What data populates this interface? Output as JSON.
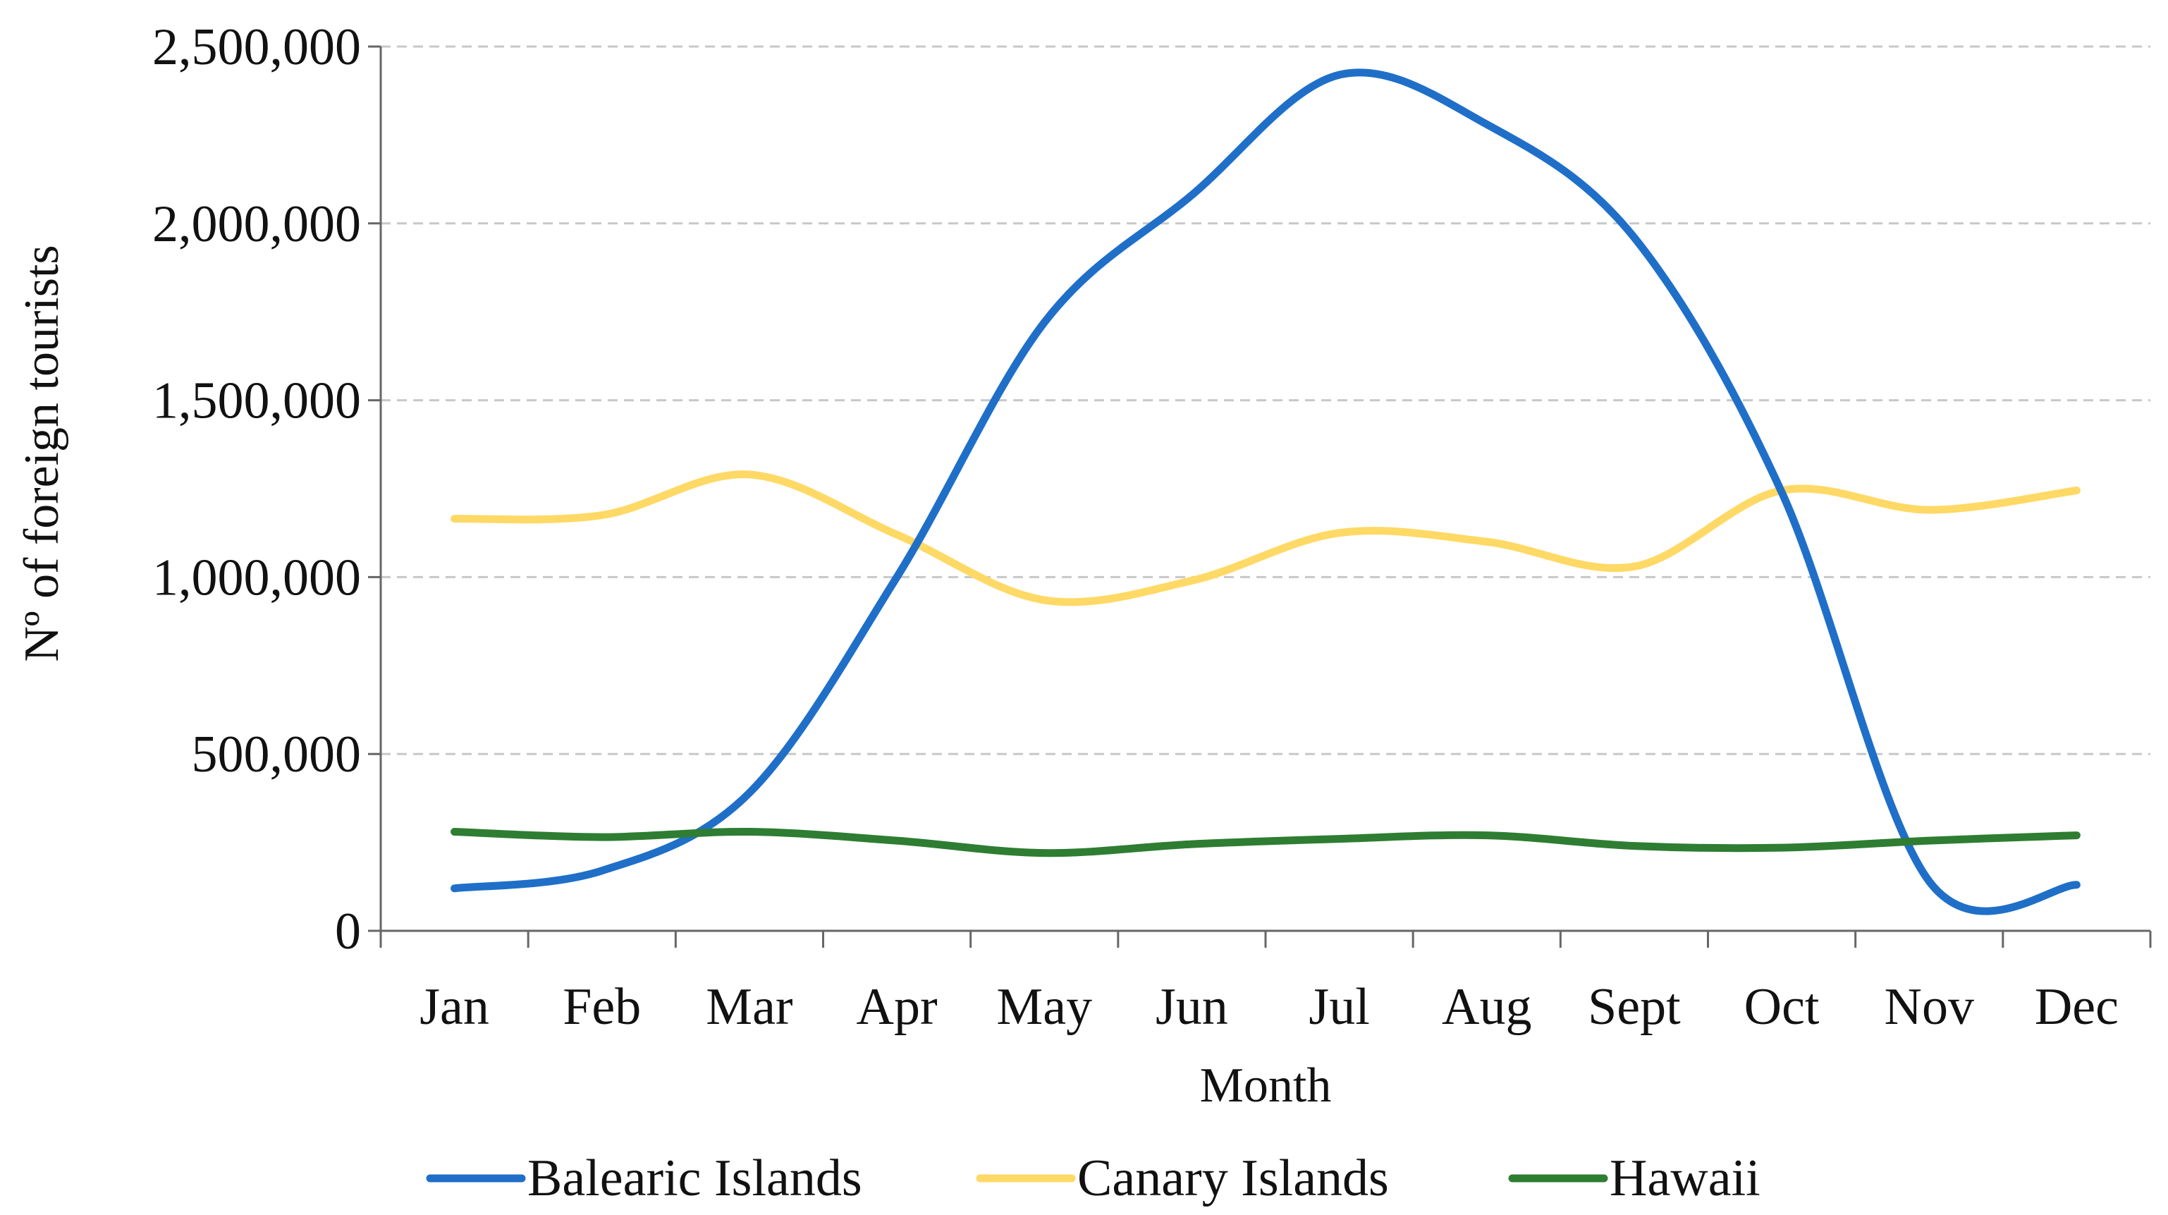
{
  "chart_data": {
    "type": "line",
    "title": "",
    "xlabel": "Month",
    "ylabel": "Nº of foreign tourists",
    "categories": [
      "Jan",
      "Feb",
      "Mar",
      "Apr",
      "May",
      "Jun",
      "Jul",
      "Aug",
      "Sept",
      "Oct",
      "Nov",
      "Dec"
    ],
    "ylim": [
      0,
      2500000
    ],
    "yticks": [
      0,
      500000,
      1000000,
      1500000,
      2000000,
      2500000
    ],
    "ytick_labels": [
      "0",
      "500,000",
      "1,000,000",
      "1,500,000",
      "2,000,000",
      "2,500,000"
    ],
    "grid": "horizontal dashed",
    "legend_position": "bottom",
    "series": [
      {
        "name": "Balearic Islands",
        "color": "#1F6FC8",
        "values": [
          120000,
          170000,
          390000,
          1000000,
          1720000,
          2080000,
          2420000,
          2280000,
          1960000,
          1240000,
          140000,
          130000
        ]
      },
      {
        "name": "Canary Islands",
        "color": "#FFD966",
        "values": [
          1165000,
          1175000,
          1290000,
          1120000,
          935000,
          990000,
          1125000,
          1100000,
          1030000,
          1245000,
          1190000,
          1245000
        ]
      },
      {
        "name": "Hawaii",
        "color": "#2E7D32",
        "values": [
          280000,
          265000,
          280000,
          255000,
          220000,
          245000,
          260000,
          270000,
          240000,
          235000,
          255000,
          270000
        ]
      }
    ]
  }
}
